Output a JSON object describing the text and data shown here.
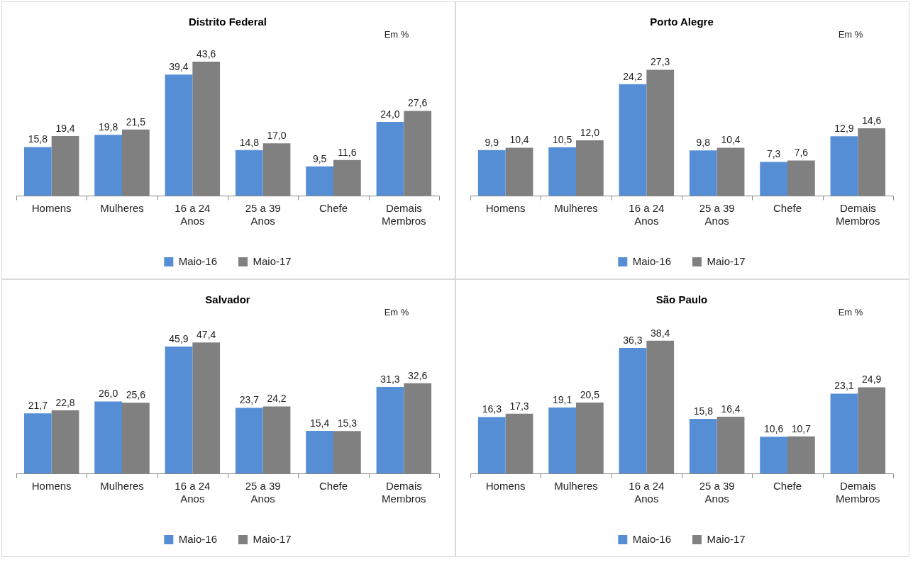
{
  "chart_data": [
    {
      "type": "bar",
      "title": "Distrito Federal",
      "annotations": [
        "Em %"
      ],
      "categories": [
        "Homens",
        "Mulheres",
        "16 a 24 Anos",
        "25 a 39 Anos",
        "Chefe",
        "Demais Membros"
      ],
      "series": [
        {
          "name": "Maio-16",
          "color": "#558ed5",
          "values": [
            15.8,
            19.8,
            39.4,
            14.8,
            9.5,
            24.0
          ],
          "value_labels": [
            "15,8",
            "19,8",
            "39,4",
            "14,8",
            "9,5",
            "24,0"
          ]
        },
        {
          "name": "Maio-17",
          "color": "#808080",
          "values": [
            19.4,
            21.5,
            43.6,
            17.0,
            11.6,
            27.6
          ],
          "value_labels": [
            "19,4",
            "21,5",
            "43,6",
            "17,0",
            "11,6",
            "27,6"
          ]
        }
      ],
      "legend": "bottom"
    },
    {
      "type": "bar",
      "title": "Porto Alegre",
      "annotations": [
        "Em %"
      ],
      "categories": [
        "Homens",
        "Mulheres",
        "16 a 24 Anos",
        "25 a 39 Anos",
        "Chefe",
        "Demais Membros"
      ],
      "series": [
        {
          "name": "Maio-16",
          "color": "#558ed5",
          "values": [
            9.9,
            10.5,
            24.2,
            9.8,
            7.3,
            12.9
          ],
          "value_labels": [
            "9,9",
            "10,5",
            "24,2",
            "9,8",
            "7,3",
            "12,9"
          ]
        },
        {
          "name": "Maio-17",
          "color": "#808080",
          "values": [
            10.4,
            12.0,
            27.3,
            10.4,
            7.6,
            14.6
          ],
          "value_labels": [
            "10,4",
            "12,0",
            "27,3",
            "10,4",
            "7,6",
            "14,6"
          ]
        }
      ],
      "legend": "bottom"
    },
    {
      "type": "bar",
      "title": "Salvador",
      "annotations": [
        "Em %"
      ],
      "categories": [
        "Homens",
        "Mulheres",
        "16 a 24 Anos",
        "25 a 39 Anos",
        "Chefe",
        "Demais Membros"
      ],
      "series": [
        {
          "name": "Maio-16",
          "color": "#558ed5",
          "values": [
            21.7,
            26.0,
            45.9,
            23.7,
            15.4,
            31.3
          ],
          "value_labels": [
            "21,7",
            "26,0",
            "45,9",
            "23,7",
            "15,4",
            "31,3"
          ]
        },
        {
          "name": "Maio-17",
          "color": "#808080",
          "values": [
            22.8,
            25.6,
            47.4,
            24.2,
            15.3,
            32.6
          ],
          "value_labels": [
            "22,8",
            "25,6",
            "47,4",
            "24,2",
            "15,3",
            "32,6"
          ]
        }
      ],
      "legend": "bottom"
    },
    {
      "type": "bar",
      "title": "São Paulo",
      "annotations": [
        "Em %"
      ],
      "categories": [
        "Homens",
        "Mulheres",
        "16 a 24 Anos",
        "25 a 39 Anos",
        "Chefe",
        "Demais Membros"
      ],
      "series": [
        {
          "name": "Maio-16",
          "color": "#558ed5",
          "values": [
            16.3,
            19.1,
            36.3,
            15.8,
            10.6,
            23.1
          ],
          "value_labels": [
            "16,3",
            "19,1",
            "36,3",
            "15,8",
            "10,6",
            "23,1"
          ]
        },
        {
          "name": "Maio-17",
          "color": "#808080",
          "values": [
            17.3,
            20.5,
            38.4,
            16.4,
            10.7,
            24.9
          ],
          "value_labels": [
            "17,3",
            "20,5",
            "38,4",
            "16,4",
            "10,7",
            "24,9"
          ]
        }
      ],
      "legend": "bottom"
    }
  ]
}
